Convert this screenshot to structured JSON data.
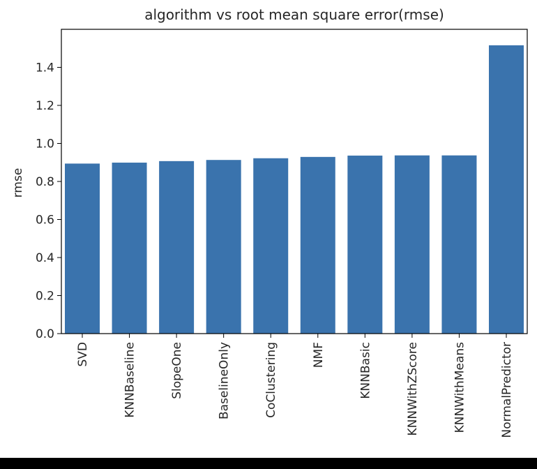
{
  "chart_data": {
    "type": "bar",
    "title": "algorithm vs root mean square error(rmse)",
    "xlabel": "",
    "ylabel": "rmse",
    "categories": [
      "SVD",
      "KNNBaseline",
      "SlopeOne",
      "BaselineOnly",
      "CoClustering",
      "NMF",
      "KNNBasic",
      "KNNWithZScore",
      "KNNWithMeans",
      "NormalPredictor"
    ],
    "values": [
      0.894,
      0.899,
      0.907,
      0.913,
      0.922,
      0.929,
      0.936,
      0.937,
      0.937,
      1.516
    ],
    "ylim": [
      0,
      1.6
    ],
    "yticks": [
      0.0,
      0.2,
      0.4,
      0.6,
      0.8,
      1.0,
      1.2,
      1.4
    ],
    "ytick_labels": [
      "0.0",
      "0.2",
      "0.4",
      "0.6",
      "0.8",
      "1.0",
      "1.2",
      "1.4"
    ],
    "grid": false,
    "legend": "none",
    "bar_color": "#3a73ad"
  }
}
